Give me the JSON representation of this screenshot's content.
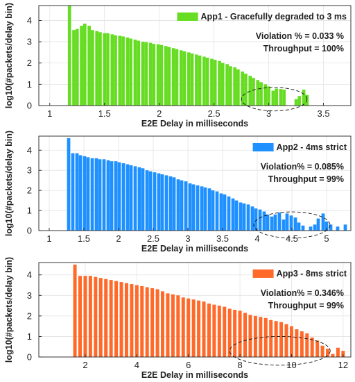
{
  "chart_data": [
    {
      "type": "bar",
      "color": "#66dd22",
      "xlabel": "E2E Delay in milliseconds",
      "ylabel": "log10(#packets/delay bin)",
      "xlim": [
        0.9,
        3.75
      ],
      "ylim": [
        0,
        4.7
      ],
      "xticks": [
        1,
        1.5,
        2,
        2.5,
        3,
        3.5
      ],
      "xtick_labels": [
        "1",
        "1.5",
        "2",
        "2.5",
        "3",
        "3.5"
      ],
      "yticks": [
        0,
        1,
        2,
        3,
        4
      ],
      "ytick_labels": [
        "0",
        "1",
        "2",
        "3",
        "4"
      ],
      "bin_width": 0.0353,
      "legend": {
        "label": "App1 - Gracefully degraded to 3 ms",
        "placement": "top-right"
      },
      "annotations": [
        "Violation % = 0.033 %",
        "Throughput = 100%"
      ],
      "highlight_region": {
        "center": [
          3.05,
          0.3
        ],
        "half_width": 0.3,
        "half_height": 0.55
      },
      "bins": [
        [
          1.18,
          4.7
        ],
        [
          1.22,
          3.55
        ],
        [
          1.25,
          3.6
        ],
        [
          1.29,
          3.75
        ],
        [
          1.32,
          3.85
        ],
        [
          1.36,
          3.75
        ],
        [
          1.39,
          3.55
        ],
        [
          1.43,
          3.5
        ],
        [
          1.46,
          3.45
        ],
        [
          1.5,
          3.4
        ],
        [
          1.53,
          3.4
        ],
        [
          1.57,
          3.35
        ],
        [
          1.6,
          3.3
        ],
        [
          1.64,
          3.28
        ],
        [
          1.67,
          3.25
        ],
        [
          1.71,
          3.2
        ],
        [
          1.74,
          3.15
        ],
        [
          1.78,
          3.1
        ],
        [
          1.81,
          3.05
        ],
        [
          1.85,
          3.0
        ],
        [
          1.88,
          2.98
        ],
        [
          1.92,
          2.95
        ],
        [
          1.95,
          2.9
        ],
        [
          1.99,
          2.88
        ],
        [
          2.02,
          2.85
        ],
        [
          2.06,
          2.8
        ],
        [
          2.09,
          2.75
        ],
        [
          2.13,
          2.7
        ],
        [
          2.16,
          2.65
        ],
        [
          2.2,
          2.6
        ],
        [
          2.23,
          2.55
        ],
        [
          2.27,
          2.5
        ],
        [
          2.3,
          2.45
        ],
        [
          2.34,
          2.4
        ],
        [
          2.37,
          2.35
        ],
        [
          2.41,
          2.3
        ],
        [
          2.44,
          2.25
        ],
        [
          2.48,
          2.2
        ],
        [
          2.51,
          2.15
        ],
        [
          2.55,
          2.1
        ],
        [
          2.58,
          2.0
        ],
        [
          2.62,
          1.95
        ],
        [
          2.65,
          1.85
        ],
        [
          2.69,
          1.8
        ],
        [
          2.72,
          1.7
        ],
        [
          2.76,
          1.6
        ],
        [
          2.79,
          1.5
        ],
        [
          2.83,
          1.4
        ],
        [
          2.86,
          1.3
        ],
        [
          2.9,
          1.2
        ],
        [
          2.93,
          1.1
        ],
        [
          2.97,
          1.0
        ],
        [
          3.0,
          0.9
        ],
        [
          3.04,
          0.7
        ],
        [
          3.07,
          0.8
        ],
        [
          3.11,
          0.78
        ],
        [
          3.14,
          0.75
        ],
        [
          3.25,
          0.3
        ],
        [
          3.28,
          0.45
        ],
        [
          3.32,
          0.75
        ],
        [
          3.35,
          0.5
        ]
      ]
    },
    {
      "type": "bar",
      "color": "#1e90ff",
      "xlabel": "E2E Delay in milliseconds",
      "ylabel": "log10(#packets/delay bin)",
      "xlim": [
        0.85,
        5.35
      ],
      "ylim": [
        0,
        4.7
      ],
      "xticks": [
        1,
        1.5,
        2,
        2.5,
        3,
        3.5,
        4,
        4.5,
        5
      ],
      "xtick_labels": [
        "1",
        "1.5",
        "2",
        "2.5",
        "3",
        "3.5",
        "4",
        "4.5",
        "5"
      ],
      "yticks": [
        0,
        1,
        2,
        3,
        4
      ],
      "ytick_labels": [
        "0",
        "1",
        "2",
        "3",
        "4"
      ],
      "bin_width": 0.0565,
      "legend": {
        "label": "App2 - 4ms strict",
        "placement": "top-right"
      },
      "annotations": [
        "Violation% = 0.085%",
        "Throughput = 99%"
      ],
      "highlight_region": {
        "center": [
          4.5,
          0.28
        ],
        "half_width": 0.55,
        "half_height": 0.65
      },
      "bins": [
        [
          1.28,
          4.6
        ],
        [
          1.34,
          3.85
        ],
        [
          1.4,
          3.85
        ],
        [
          1.45,
          3.75
        ],
        [
          1.51,
          3.7
        ],
        [
          1.56,
          3.65
        ],
        [
          1.62,
          3.6
        ],
        [
          1.68,
          3.6
        ],
        [
          1.73,
          3.55
        ],
        [
          1.79,
          3.55
        ],
        [
          1.85,
          3.5
        ],
        [
          1.9,
          3.45
        ],
        [
          1.96,
          3.45
        ],
        [
          2.01,
          3.4
        ],
        [
          2.07,
          3.35
        ],
        [
          2.13,
          3.3
        ],
        [
          2.18,
          3.25
        ],
        [
          2.24,
          3.2
        ],
        [
          2.3,
          3.15
        ],
        [
          2.35,
          3.1
        ],
        [
          2.41,
          3.0
        ],
        [
          2.46,
          2.95
        ],
        [
          2.52,
          2.9
        ],
        [
          2.58,
          2.85
        ],
        [
          2.63,
          2.8
        ],
        [
          2.69,
          2.75
        ],
        [
          2.75,
          2.7
        ],
        [
          2.8,
          2.65
        ],
        [
          2.86,
          2.55
        ],
        [
          2.91,
          2.5
        ],
        [
          2.97,
          2.45
        ],
        [
          3.03,
          2.35
        ],
        [
          3.08,
          2.3
        ],
        [
          3.14,
          2.25
        ],
        [
          3.2,
          2.2
        ],
        [
          3.25,
          2.15
        ],
        [
          3.31,
          2.1
        ],
        [
          3.36,
          2.0
        ],
        [
          3.42,
          1.95
        ],
        [
          3.48,
          1.85
        ],
        [
          3.53,
          1.8
        ],
        [
          3.59,
          1.7
        ],
        [
          3.65,
          1.6
        ],
        [
          3.7,
          1.5
        ],
        [
          3.76,
          1.4
        ],
        [
          3.81,
          1.35
        ],
        [
          3.87,
          1.3
        ],
        [
          3.93,
          1.2
        ],
        [
          3.98,
          1.1
        ],
        [
          4.04,
          1.05
        ],
        [
          4.1,
          0.95
        ],
        [
          4.15,
          0.8
        ],
        [
          4.21,
          0.7
        ],
        [
          4.26,
          0.8
        ],
        [
          4.32,
          0.9
        ],
        [
          4.38,
          0.55
        ],
        [
          4.43,
          0.85
        ],
        [
          4.49,
          0.75
        ],
        [
          4.55,
          0.65
        ],
        [
          4.6,
          0.4
        ],
        [
          4.66,
          0.25
        ],
        [
          4.77,
          0.2
        ],
        [
          4.83,
          0.3
        ],
        [
          4.88,
          0.6
        ],
        [
          4.95,
          0.85
        ],
        [
          5.0,
          0.45
        ],
        [
          5.06,
          0.3
        ],
        [
          5.16,
          0.2
        ],
        [
          5.27,
          0.3
        ]
      ]
    },
    {
      "type": "bar",
      "color": "#ff6a2a",
      "xlabel": "E2E Delay in milliseconds",
      "ylabel": "log10(#packets/delay bin)",
      "xlim": [
        0.2,
        12.3
      ],
      "ylim": [
        0,
        4.6
      ],
      "xticks": [
        2,
        4,
        6,
        8,
        10,
        12
      ],
      "xtick_labels": [
        "2",
        "4",
        "6",
        "8",
        "10",
        "12"
      ],
      "yticks": [
        0,
        1,
        2,
        3,
        4
      ],
      "ytick_labels": [
        "0",
        "1",
        "2",
        "3",
        "4"
      ],
      "bin_width": 0.16,
      "legend": {
        "label": "App3 - 8ms strict",
        "placement": "top-right"
      },
      "annotations": [
        "Violation% = 0.346%",
        "Throughput = 99%"
      ],
      "highlight_region": {
        "center": [
          9.55,
          0.3
        ],
        "half_width": 1.95,
        "half_height": 0.7
      },
      "bins": [
        [
          1.6,
          4.5
        ],
        [
          1.8,
          3.95
        ],
        [
          2.0,
          3.95
        ],
        [
          2.2,
          3.95
        ],
        [
          2.4,
          3.9
        ],
        [
          2.6,
          3.85
        ],
        [
          2.8,
          3.8
        ],
        [
          3.0,
          3.75
        ],
        [
          3.2,
          3.7
        ],
        [
          3.4,
          3.65
        ],
        [
          3.6,
          3.6
        ],
        [
          3.8,
          3.55
        ],
        [
          4.0,
          3.5
        ],
        [
          4.2,
          3.45
        ],
        [
          4.4,
          3.4
        ],
        [
          4.6,
          3.35
        ],
        [
          4.8,
          3.3
        ],
        [
          5.0,
          3.2
        ],
        [
          5.2,
          3.1
        ],
        [
          5.4,
          3.05
        ],
        [
          5.6,
          3.0
        ],
        [
          5.8,
          2.9
        ],
        [
          6.0,
          2.85
        ],
        [
          6.2,
          2.8
        ],
        [
          6.4,
          2.75
        ],
        [
          6.6,
          2.7
        ],
        [
          6.8,
          2.6
        ],
        [
          7.0,
          2.55
        ],
        [
          7.2,
          2.5
        ],
        [
          7.4,
          2.45
        ],
        [
          7.6,
          2.35
        ],
        [
          7.8,
          2.3
        ],
        [
          8.0,
          2.25
        ],
        [
          8.2,
          2.15
        ],
        [
          8.4,
          2.05
        ],
        [
          8.6,
          2.0
        ],
        [
          8.8,
          1.95
        ],
        [
          9.0,
          1.9
        ],
        [
          9.2,
          1.8
        ],
        [
          9.4,
          1.75
        ],
        [
          9.6,
          1.7
        ],
        [
          9.8,
          1.6
        ],
        [
          10.0,
          1.5
        ],
        [
          10.2,
          1.35
        ],
        [
          10.4,
          1.25
        ],
        [
          10.6,
          1.15
        ],
        [
          10.8,
          0.95
        ],
        [
          11.0,
          0.8
        ],
        [
          11.2,
          0.55
        ],
        [
          11.4,
          0.4
        ],
        [
          11.6,
          0.15
        ],
        [
          11.8,
          0.45
        ],
        [
          12.0,
          0.3
        ]
      ]
    }
  ]
}
